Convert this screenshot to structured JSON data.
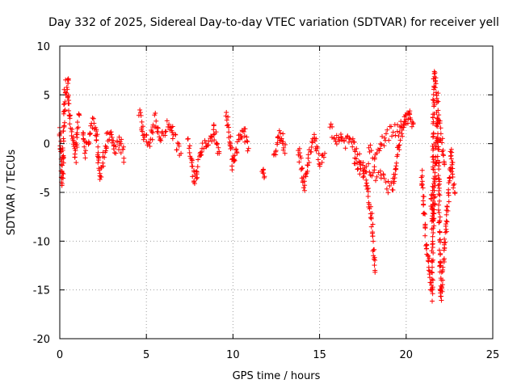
{
  "chart_data": {
    "type": "scatter",
    "title": "Day 332 of 2025, Sidereal Day-to-day VTEC variation (SDTVAR) for receiver yell",
    "xlabel": "GPS time / hours",
    "ylabel": "SDTVAR / TECUs",
    "xlim": [
      0,
      25
    ],
    "ylim": [
      -20,
      10
    ],
    "grid": true,
    "marker": "plus",
    "color": "#ff0000",
    "x_ticks": [
      0,
      5,
      10,
      15,
      20,
      25
    ],
    "y_ticks": [
      -20,
      -15,
      -10,
      -5,
      0,
      5,
      10
    ],
    "segments": [
      {
        "x": [
          0.0,
          0.15,
          0.3,
          0.45,
          0.6,
          0.75,
          0.9,
          1.0,
          1.1
        ],
        "y": [
          1.5,
          -4.5,
          5.5,
          6.5,
          2.0,
          0.5,
          -1.5,
          1.0,
          3.0
        ]
      },
      {
        "x": [
          1.3,
          1.5,
          1.7,
          1.9,
          2.1,
          2.3,
          2.6,
          2.9,
          3.2,
          3.5,
          3.7
        ],
        "y": [
          1.0,
          -1.0,
          0.5,
          2.0,
          1.5,
          -3.5,
          -0.5,
          1.5,
          -1.0,
          0.5,
          -1.5
        ]
      },
      {
        "x": [
          4.6,
          4.9,
          5.2,
          5.5,
          5.8,
          6.1,
          6.4,
          6.7,
          7.0
        ],
        "y": [
          3.5,
          0.5,
          0.0,
          2.5,
          0.5,
          1.5,
          2.0,
          0.0,
          -1.0
        ]
      },
      {
        "x": [
          7.4,
          7.6,
          7.8,
          8.0,
          8.3,
          8.6,
          8.9,
          9.2
        ],
        "y": [
          0.0,
          -1.5,
          -4.0,
          -2.0,
          0.0,
          -0.5,
          1.5,
          -1.0
        ]
      },
      {
        "x": [
          9.6,
          9.8,
          10.0,
          10.3,
          10.6,
          10.9
        ],
        "y": [
          3.0,
          1.0,
          -2.5,
          0.0,
          1.5,
          -0.5
        ]
      },
      {
        "x": [
          11.7,
          11.8
        ],
        "y": [
          -2.5,
          -3.5
        ]
      },
      {
        "x": [
          12.4,
          12.6,
          12.8,
          13.0
        ],
        "y": [
          -1.5,
          0.5,
          1.0,
          -1.0
        ]
      },
      {
        "x": [
          13.8,
          14.1,
          14.4,
          14.7,
          15.0,
          15.3
        ],
        "y": [
          -0.5,
          -4.5,
          -1.0,
          0.5,
          -2.0,
          -1.0
        ]
      },
      {
        "x": [
          15.6,
          15.9,
          16.2,
          16.5,
          16.8,
          17.1,
          17.4,
          17.7,
          18.0,
          18.2
        ],
        "y": [
          1.5,
          0.5,
          1.0,
          0.0,
          0.5,
          -1.0,
          -2.0,
          -4.0,
          -7.5,
          -13.0
        ]
      },
      {
        "x": [
          17.0,
          17.4,
          17.8,
          18.2,
          18.6,
          19.0,
          19.3,
          19.6,
          19.9,
          20.2,
          20.4
        ],
        "y": [
          -1.5,
          -3.0,
          -2.5,
          -3.0,
          -3.5,
          -4.5,
          -4.0,
          0.5,
          2.5,
          3.5,
          2.0
        ]
      },
      {
        "x": [
          17.8,
          18.2,
          18.6,
          19.0,
          19.4,
          19.8,
          20.2
        ],
        "y": [
          -0.5,
          -1.0,
          0.0,
          1.0,
          1.5,
          2.0,
          3.0
        ]
      },
      {
        "x": [
          20.9,
          21.1,
          21.3,
          21.5,
          21.6,
          21.8,
          22.0,
          22.2,
          22.4,
          22.6,
          22.8
        ],
        "y": [
          -3.0,
          -9.0,
          -12.5,
          -15.5,
          7.5,
          5.0,
          -16.0,
          -11.0,
          -6.0,
          -1.0,
          -5.0
        ]
      },
      {
        "x": [
          21.4,
          21.6,
          21.8,
          22.0,
          22.2
        ],
        "y": [
          -5.0,
          -8.0,
          3.0,
          1.0,
          -2.0
        ]
      }
    ]
  }
}
